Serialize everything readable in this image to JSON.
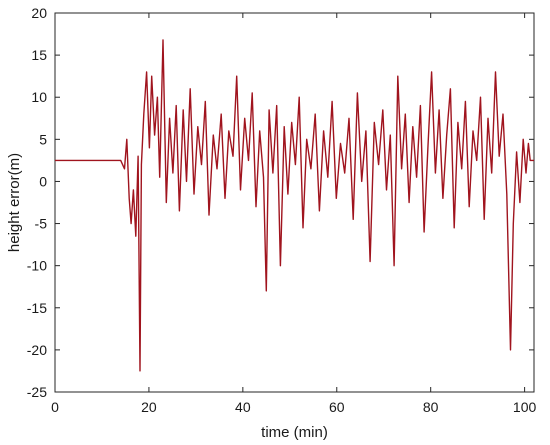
{
  "chart_data": {
    "type": "line",
    "title": "",
    "xlabel": "time (min)",
    "ylabel": "height error(m)",
    "xlim": [
      0,
      102
    ],
    "ylim": [
      -25,
      20
    ],
    "xticks": [
      0,
      20,
      40,
      60,
      80,
      100
    ],
    "yticks": [
      -25,
      -20,
      -15,
      -10,
      -5,
      0,
      5,
      10,
      15,
      20
    ],
    "grid": false,
    "line_color": "#A0141E",
    "series": [
      {
        "x": [
          0,
          5,
          10,
          14,
          14.8,
          15.3,
          15.8,
          16.2,
          16.7,
          17.2,
          17.7,
          18.1,
          18.4,
          18.9,
          19.5,
          20.1,
          20.6,
          21.2,
          21.8,
          22.3,
          23.0,
          23.7,
          24.4,
          25.1,
          25.8,
          26.5,
          27.3,
          28.0,
          28.8,
          29.6,
          30.4,
          31.2,
          32.0,
          32.8,
          33.7,
          34.5,
          35.4,
          36.2,
          37.0,
          37.9,
          38.7,
          39.5,
          40.4,
          41.2,
          42.0,
          42.8,
          43.6,
          44.4,
          45.0,
          45.6,
          46.4,
          47.2,
          48.0,
          48.8,
          49.6,
          50.4,
          51.2,
          52.0,
          52.8,
          53.6,
          54.5,
          55.4,
          56.3,
          57.2,
          58.1,
          59.0,
          59.9,
          60.8,
          61.7,
          62.6,
          63.5,
          64.4,
          65.3,
          66.2,
          67.1,
          68.0,
          68.9,
          69.8,
          70.6,
          71.4,
          72.2,
          73.0,
          73.8,
          74.6,
          75.4,
          76.2,
          77.0,
          77.8,
          78.6,
          79.4,
          80.2,
          81.0,
          81.8,
          82.6,
          83.4,
          84.2,
          85.0,
          85.8,
          86.6,
          87.4,
          88.2,
          89.0,
          89.8,
          90.6,
          91.4,
          92.2,
          93.0,
          93.8,
          94.6,
          95.4,
          96.2,
          97.0,
          97.6,
          98.3,
          99.0,
          99.7,
          100.3,
          100.8,
          101.2,
          102
        ],
        "y": [
          2.5,
          2.5,
          2.5,
          2.5,
          1.5,
          5.0,
          -2.0,
          -5.0,
          -1.0,
          -6.5,
          3.0,
          -22.5,
          2.0,
          8.0,
          13.0,
          4.0,
          12.5,
          5.5,
          10.0,
          0.5,
          16.8,
          -2.5,
          7.5,
          1.0,
          9.0,
          -3.5,
          8.5,
          0.0,
          11.0,
          -1.5,
          6.5,
          2.0,
          9.5,
          -4.0,
          5.5,
          1.5,
          8.0,
          -2.0,
          6.0,
          3.0,
          12.5,
          -1.0,
          7.5,
          2.5,
          10.5,
          -3.0,
          6.0,
          0.5,
          -13.0,
          8.5,
          1.0,
          9.0,
          -10.0,
          6.5,
          -1.5,
          7.0,
          2.0,
          10.0,
          -5.5,
          5.0,
          1.5,
          8.0,
          -3.5,
          6.0,
          0.5,
          9.5,
          -2.0,
          4.5,
          1.0,
          7.5,
          -4.5,
          10.5,
          0.0,
          6.0,
          -9.5,
          7.0,
          2.0,
          8.5,
          -1.0,
          5.5,
          -10.0,
          12.5,
          1.5,
          8.0,
          -2.5,
          6.5,
          0.5,
          9.0,
          -6.0,
          4.0,
          13.0,
          1.0,
          8.5,
          -2.0,
          5.5,
          11.0,
          -5.5,
          7.0,
          1.5,
          9.5,
          -3.0,
          6.0,
          2.5,
          10.0,
          -4.5,
          7.5,
          1.0,
          13.0,
          3.0,
          8.0,
          -1.5,
          -20.0,
          -5.0,
          3.5,
          -2.5,
          5.0,
          1.0,
          4.5,
          2.5,
          2.5
        ]
      }
    ]
  }
}
